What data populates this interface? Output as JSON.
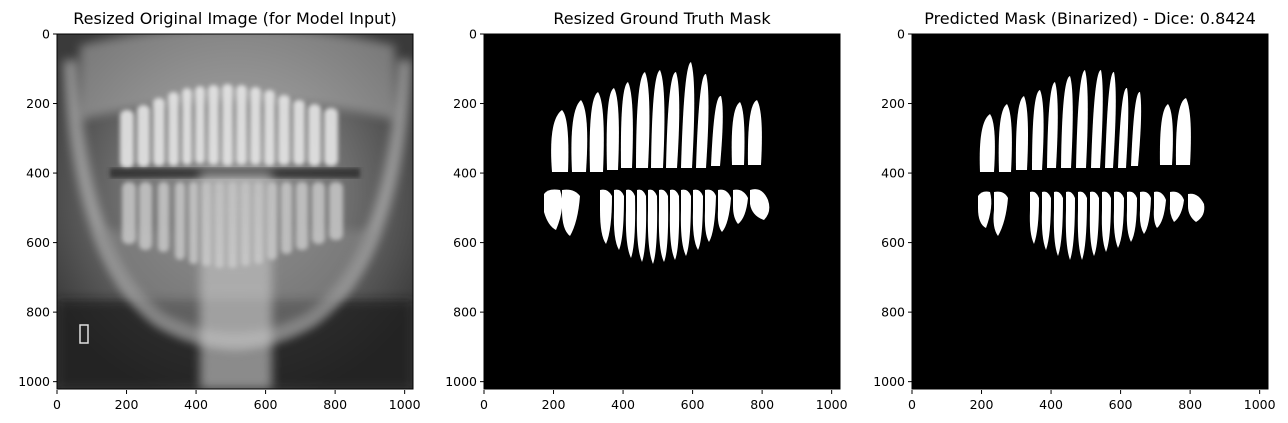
{
  "chart_data": [
    {
      "type": "image",
      "title": "Resized Original Image (for Model Input)",
      "content": "panoramic dental x-ray",
      "colormap": "gray",
      "xlim": [
        0,
        1024
      ],
      "ylim": [
        1024,
        0
      ],
      "xticks": [
        0,
        200,
        400,
        600,
        800,
        1000
      ],
      "yticks": [
        0,
        200,
        400,
        600,
        800,
        1000
      ]
    },
    {
      "type": "image",
      "title": "Resized Ground Truth Mask",
      "content": "binary teeth mask",
      "colormap": "gray",
      "xlim": [
        0,
        1024
      ],
      "ylim": [
        1024,
        0
      ],
      "xticks": [
        0,
        200,
        400,
        600,
        800,
        1000
      ],
      "yticks": [
        0,
        200,
        400,
        600,
        800,
        1000
      ]
    },
    {
      "type": "image",
      "title": "Predicted Mask (Binarized) - Dice: 0.8424",
      "content": "binary predicted teeth mask",
      "colormap": "gray",
      "xlim": [
        0,
        1024
      ],
      "ylim": [
        1024,
        0
      ],
      "xticks": [
        0,
        200,
        400,
        600,
        800,
        1000
      ],
      "yticks": [
        0,
        200,
        400,
        600,
        800,
        1000
      ]
    }
  ],
  "colors": {
    "background": "#ffffff",
    "mask_background": "#000000",
    "mask_foreground": "#ffffff"
  }
}
